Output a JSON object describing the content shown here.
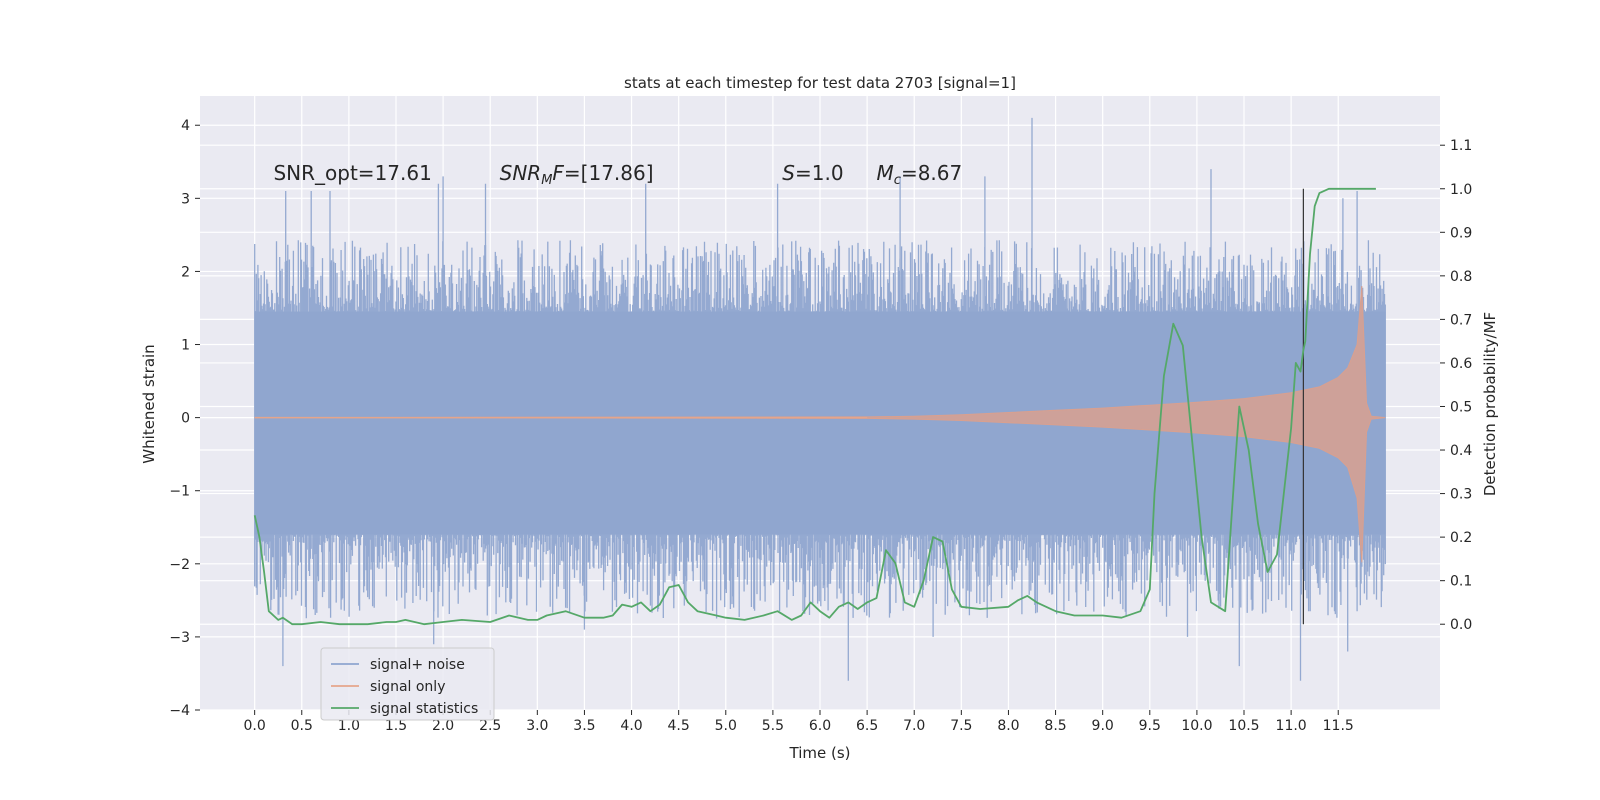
{
  "chart_data": {
    "type": "line",
    "title": "stats at each timestep for test data 2703 [signal=1]",
    "xlabel": "Time (s)",
    "ylabel": "Whitened strain",
    "ylabel_right": "Detection probability/MF",
    "xlim": [
      -0.58,
      12.58
    ],
    "ylim": [
      -4.0,
      4.4
    ],
    "ylim_right": [
      -0.197,
      1.213
    ],
    "x_ticks": [
      0.0,
      0.5,
      1.0,
      1.5,
      2.0,
      2.5,
      3.0,
      3.5,
      4.0,
      4.5,
      5.0,
      5.5,
      6.0,
      6.5,
      7.0,
      7.5,
      8.0,
      8.5,
      9.0,
      9.5,
      10.0,
      10.5,
      11.0,
      11.5
    ],
    "x_tick_labels": [
      "0.0",
      "0.5",
      "1.0",
      "1.5",
      "2.0",
      "2.5",
      "3.0",
      "3.5",
      "4.0",
      "4.5",
      "5.0",
      "5.5",
      "6.0",
      "6.5",
      "7.0",
      "7.5",
      "8.0",
      "8.5",
      "9.0",
      "9.5",
      "10.0",
      "10.5",
      "11.0",
      "11.5"
    ],
    "y_ticks": [
      -4,
      -3,
      -2,
      -1,
      0,
      1,
      2,
      3,
      4
    ],
    "y_tick_labels": [
      "−4",
      "−3",
      "−2",
      "−1",
      "0",
      "1",
      "2",
      "3",
      "4"
    ],
    "y_ticks_right": [
      0.0,
      0.1,
      0.2,
      0.3,
      0.4,
      0.5,
      0.6,
      0.7,
      0.8,
      0.9,
      1.0,
      1.1
    ],
    "y_tick_labels_right": [
      "0.0",
      "0.1",
      "0.2",
      "0.3",
      "0.4",
      "0.5",
      "0.6",
      "0.7",
      "0.8",
      "0.9",
      "1.0",
      "1.1"
    ],
    "annotations": [
      {
        "text": "SNR_opt=17.61",
        "x": 0.2,
        "y": 3.35
      },
      {
        "text": "SNR_MF=[17.86]",
        "x": 2.6,
        "y": 3.35
      },
      {
        "text": "S=1.0",
        "x": 5.6,
        "y": 3.35
      },
      {
        "text": "M_c=8.67",
        "x": 6.6,
        "y": 3.35
      }
    ],
    "vertical_line_x": 11.13,
    "legend": {
      "position": "lower-left",
      "entries": [
        {
          "label": "signal+ noise",
          "color": "#8fa5cf"
        },
        {
          "label": "signal only",
          "color": "#e5a58b"
        },
        {
          "label": "signal statistics",
          "color": "#55a868"
        }
      ]
    },
    "series": [
      {
        "name": "signal+ noise",
        "axis": "left",
        "style": "dense noise band",
        "x_range": [
          0.0,
          12.0
        ],
        "core_band": [
          -1.6,
          1.45
        ],
        "typical_peaks": [
          -2.6,
          2.3
        ],
        "notable_peaks": [
          {
            "x": 0.33,
            "y": 3.1
          },
          {
            "x": 0.6,
            "y": 3.1
          },
          {
            "x": 0.8,
            "y": 3.1
          },
          {
            "x": 1.95,
            "y": 3.2
          },
          {
            "x": 2.0,
            "y": 3.3
          },
          {
            "x": 2.45,
            "y": 3.2
          },
          {
            "x": 4.15,
            "y": 3.2
          },
          {
            "x": 5.55,
            "y": 3.2
          },
          {
            "x": 6.85,
            "y": 3.3
          },
          {
            "x": 7.75,
            "y": 3.3
          },
          {
            "x": 8.25,
            "y": 4.1
          },
          {
            "x": 10.15,
            "y": 3.4
          },
          {
            "x": 11.55,
            "y": 3.0
          },
          {
            "x": 11.7,
            "y": 3.1
          },
          {
            "x": 0.3,
            "y": -3.4
          },
          {
            "x": 1.9,
            "y": -3.1
          },
          {
            "x": 3.5,
            "y": -2.9
          },
          {
            "x": 6.3,
            "y": -3.6
          },
          {
            "x": 7.2,
            "y": -3.0
          },
          {
            "x": 9.9,
            "y": -3.0
          },
          {
            "x": 10.45,
            "y": -3.4
          },
          {
            "x": 11.1,
            "y": -3.6
          },
          {
            "x": 11.6,
            "y": -3.2
          }
        ]
      },
      {
        "name": "signal only",
        "axis": "left",
        "style": "chirp envelope",
        "x": [
          0.0,
          6.5,
          7.0,
          7.5,
          8.0,
          8.5,
          9.0,
          9.5,
          10.0,
          10.5,
          11.0,
          11.3,
          11.5,
          11.6,
          11.7,
          11.75,
          11.8,
          11.85,
          12.0
        ],
        "envelope": [
          0.0,
          0.01,
          0.02,
          0.04,
          0.07,
          0.1,
          0.13,
          0.17,
          0.21,
          0.26,
          0.34,
          0.42,
          0.55,
          0.68,
          1.0,
          1.8,
          0.2,
          0.02,
          0.0
        ]
      },
      {
        "name": "signal statistics",
        "axis": "right",
        "x": [
          0.0,
          0.05,
          0.1,
          0.15,
          0.25,
          0.3,
          0.4,
          0.5,
          0.7,
          0.9,
          1.0,
          1.2,
          1.4,
          1.5,
          1.6,
          1.8,
          2.0,
          2.2,
          2.5,
          2.7,
          2.9,
          3.0,
          3.1,
          3.3,
          3.5,
          3.7,
          3.8,
          3.9,
          4.0,
          4.1,
          4.2,
          4.3,
          4.4,
          4.5,
          4.6,
          4.7,
          4.9,
          5.0,
          5.2,
          5.4,
          5.55,
          5.7,
          5.8,
          5.9,
          6.0,
          6.1,
          6.2,
          6.3,
          6.4,
          6.5,
          6.6,
          6.7,
          6.8,
          6.9,
          7.0,
          7.1,
          7.2,
          7.3,
          7.4,
          7.5,
          7.7,
          8.0,
          8.1,
          8.2,
          8.3,
          8.5,
          8.7,
          9.0,
          9.2,
          9.4,
          9.5,
          9.55,
          9.65,
          9.75,
          9.85,
          9.95,
          10.05,
          10.15,
          10.3,
          10.4,
          10.45,
          10.55,
          10.65,
          10.75,
          10.85,
          11.0,
          11.05,
          11.1,
          11.13,
          11.15,
          11.2,
          11.25,
          11.3,
          11.4,
          11.6,
          11.9
        ],
        "values": [
          0.25,
          0.2,
          0.12,
          0.03,
          0.01,
          0.015,
          0.0,
          0.0,
          0.005,
          0.0,
          0.0,
          0.0,
          0.005,
          0.005,
          0.01,
          0.0,
          0.005,
          0.01,
          0.005,
          0.02,
          0.01,
          0.01,
          0.02,
          0.03,
          0.015,
          0.015,
          0.02,
          0.045,
          0.04,
          0.05,
          0.03,
          0.045,
          0.085,
          0.09,
          0.05,
          0.03,
          0.02,
          0.015,
          0.01,
          0.02,
          0.03,
          0.01,
          0.02,
          0.05,
          0.03,
          0.015,
          0.04,
          0.05,
          0.035,
          0.05,
          0.06,
          0.17,
          0.14,
          0.05,
          0.04,
          0.1,
          0.2,
          0.19,
          0.08,
          0.04,
          0.035,
          0.04,
          0.055,
          0.065,
          0.05,
          0.03,
          0.02,
          0.02,
          0.015,
          0.03,
          0.08,
          0.3,
          0.57,
          0.69,
          0.64,
          0.42,
          0.2,
          0.05,
          0.03,
          0.35,
          0.5,
          0.4,
          0.23,
          0.12,
          0.16,
          0.45,
          0.6,
          0.58,
          0.63,
          0.65,
          0.85,
          0.96,
          0.99,
          1.0,
          1.0,
          1.0
        ]
      }
    ]
  }
}
